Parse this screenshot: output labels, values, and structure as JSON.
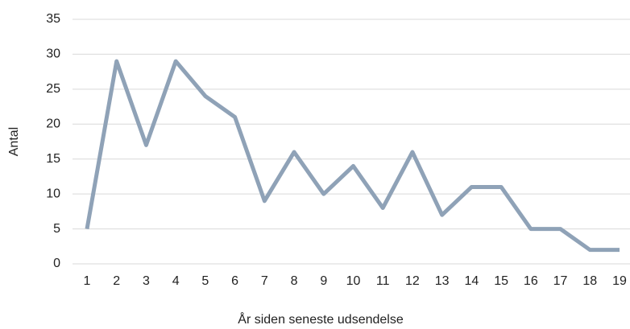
{
  "chart_data": {
    "type": "line",
    "x_label": "År siden seneste udsendelse",
    "y_label": "Antal",
    "categories": [
      "1",
      "2",
      "3",
      "4",
      "5",
      "6",
      "7",
      "8",
      "9",
      "10",
      "11",
      "12",
      "13",
      "14",
      "15",
      "16",
      "17",
      "18",
      "19"
    ],
    "series": [
      {
        "name": "Antal",
        "color": "#8fa2b7",
        "values": [
          5,
          29,
          17,
          29,
          24,
          21,
          9,
          16,
          10,
          14,
          8,
          16,
          7,
          11,
          11,
          5,
          5,
          2,
          2
        ]
      }
    ],
    "ylim": [
      0,
      35
    ],
    "yticks": [
      0,
      5,
      10,
      15,
      20,
      25,
      30,
      35
    ],
    "grid": true,
    "legend": false
  }
}
